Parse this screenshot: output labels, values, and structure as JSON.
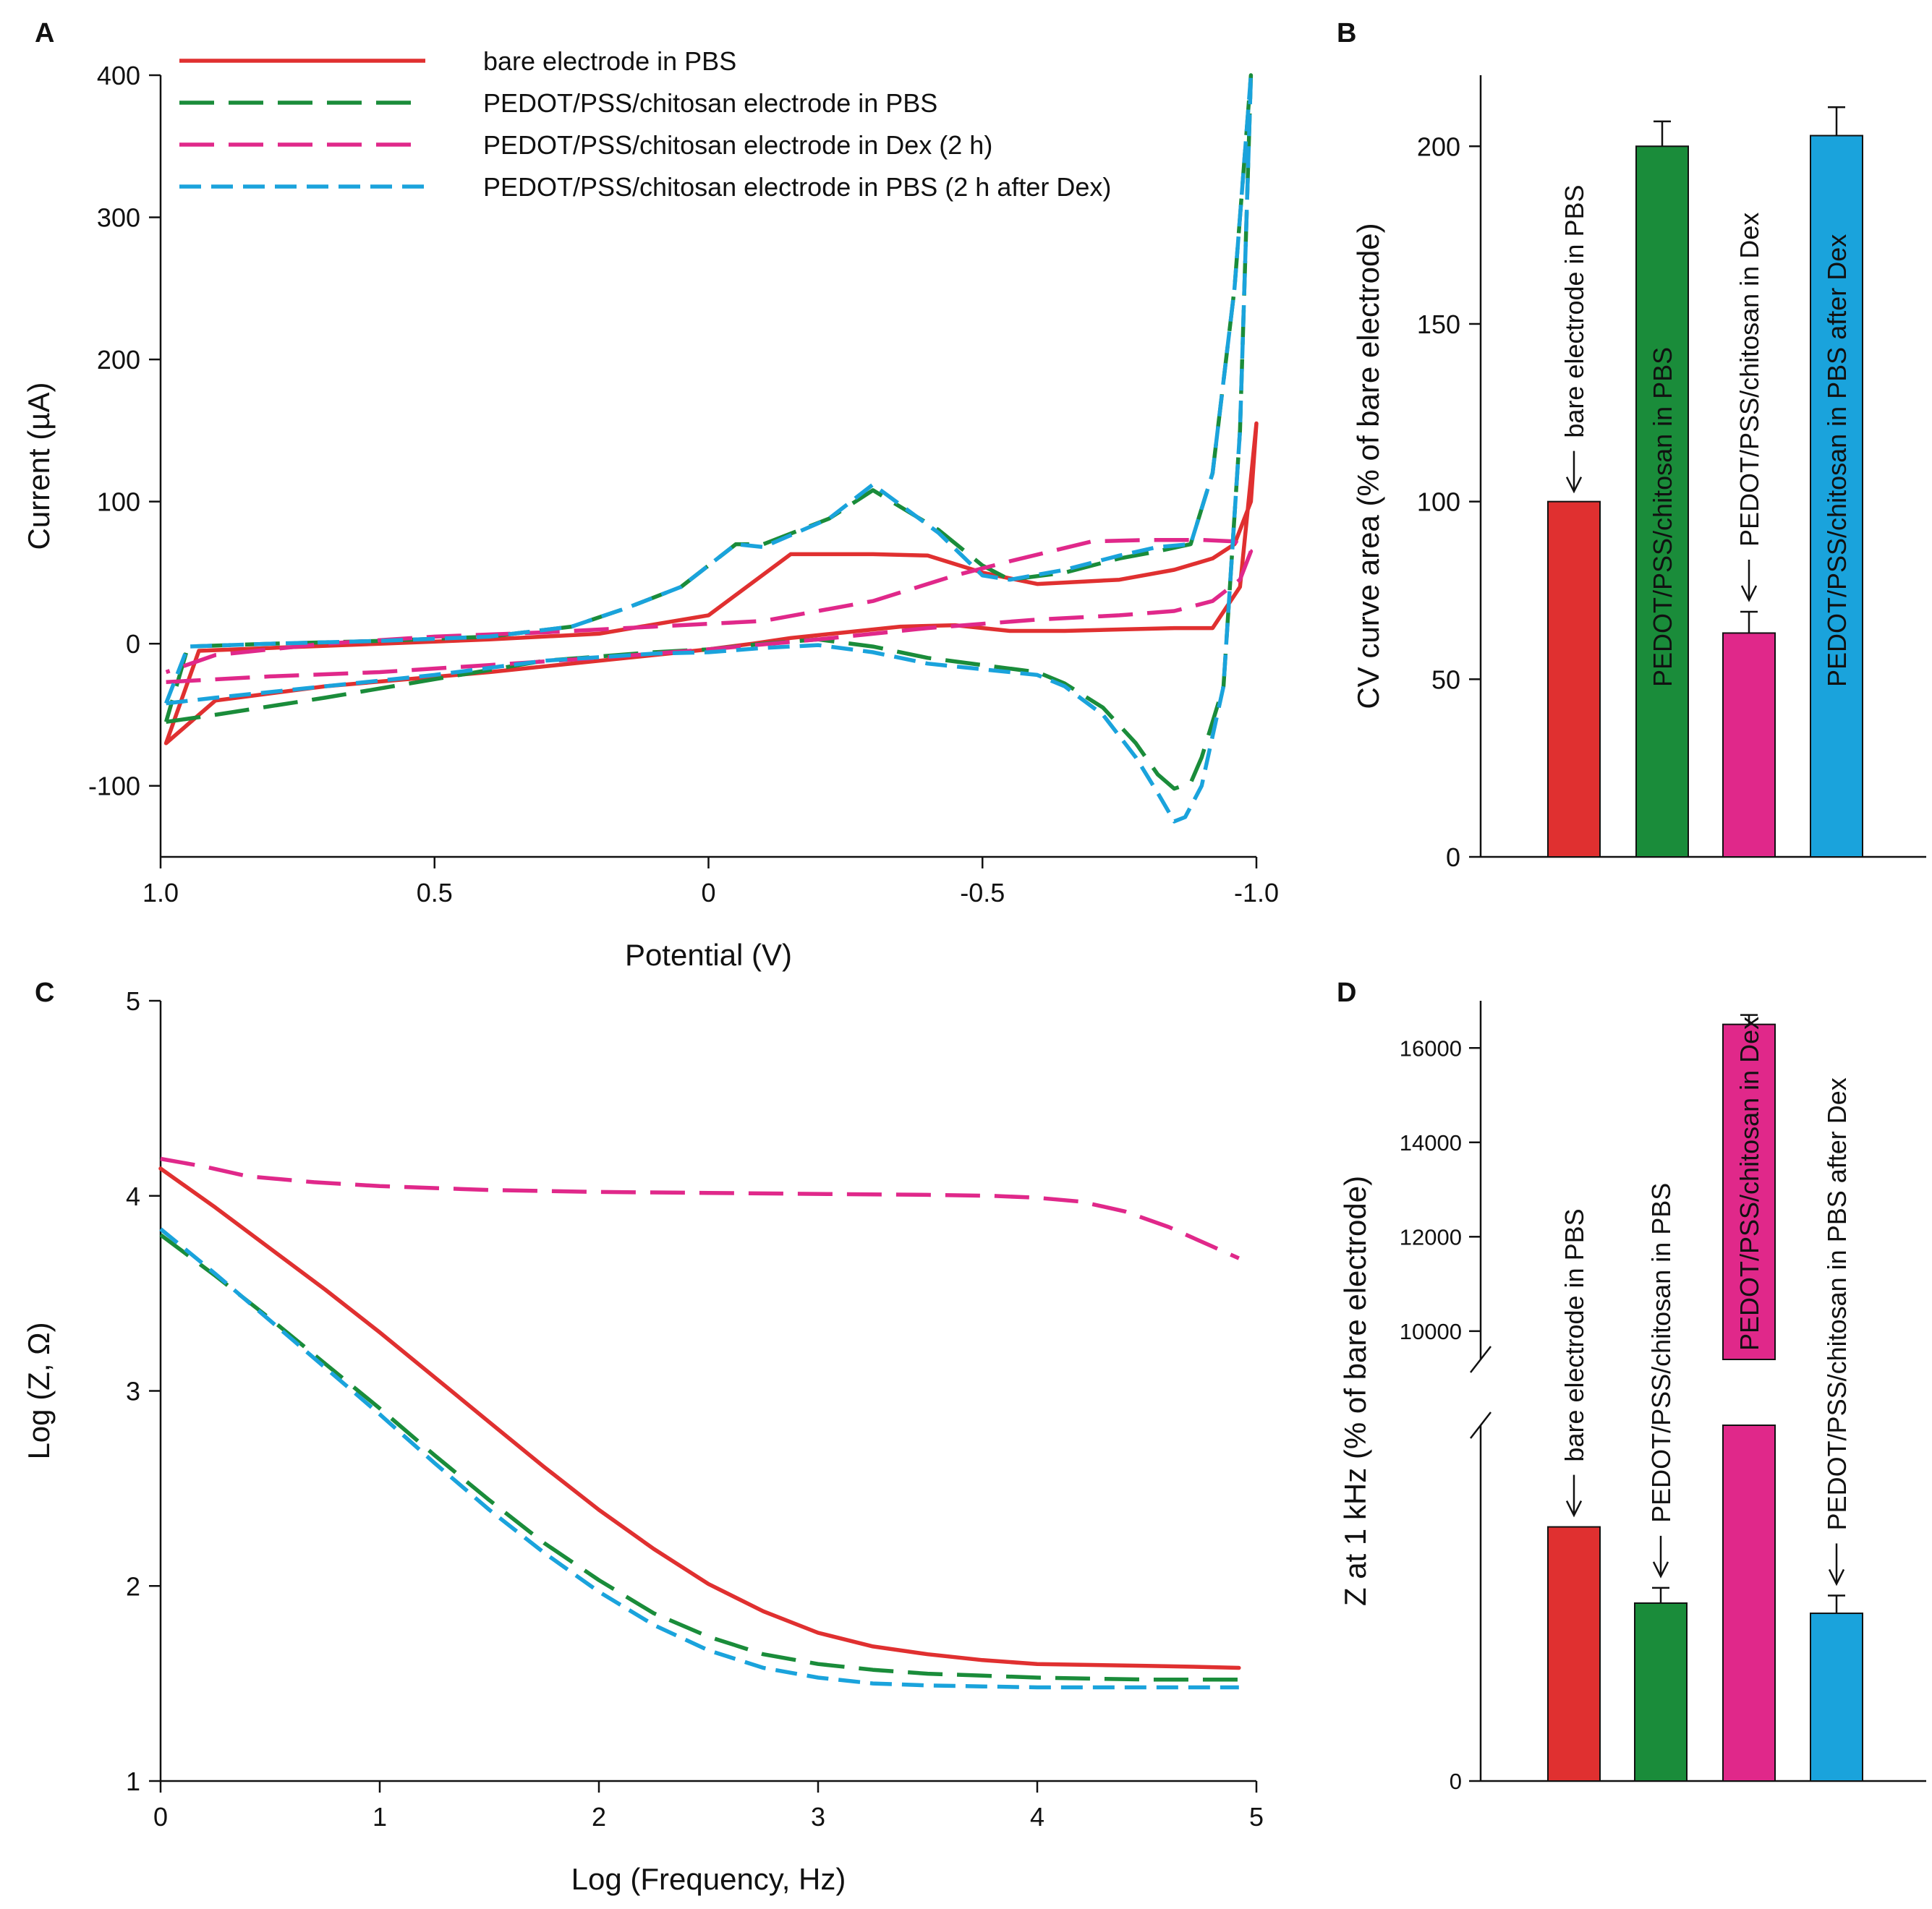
{
  "chart_data": [
    {
      "panel": "A",
      "type": "line",
      "xlabel": "Potential (V)",
      "ylabel": "Current (µA)",
      "xlim": [
        1.0,
        -1.0
      ],
      "ylim": [
        -150,
        400
      ],
      "xticks": [
        1.0,
        0.5,
        0,
        -0.5,
        -1.0
      ],
      "xtick_labels": [
        "1.0",
        "0.5",
        "0",
        "-0.5",
        "-1.0"
      ],
      "yticks": [
        -100,
        0,
        100,
        200,
        300,
        400
      ],
      "ytick_labels": [
        "-100",
        "0",
        "100",
        "200",
        "300",
        "400"
      ],
      "legend": [
        {
          "label": "bare electrode in PBS",
          "color": "#e03030",
          "style": "solid"
        },
        {
          "label": "PEDOT/PSS/chitosan electrode in PBS",
          "color": "#1a8c3a",
          "style": "long-dash"
        },
        {
          "label": "PEDOT/PSS/chitosan electrode in Dex (2 h)",
          "color": "#e0288a",
          "style": "long-dash"
        },
        {
          "label": "PEDOT/PSS/chitosan electrode in PBS (2 h after Dex)",
          "color": "#1aa3dc",
          "style": "dash"
        }
      ],
      "series": [
        {
          "name": "bare electrode in PBS",
          "color": "#e03030",
          "style": "solid",
          "x": [
            0.99,
            0.9,
            0.7,
            0.4,
            0.2,
            0.05,
            0.0,
            -0.08,
            -0.15,
            -0.25,
            -0.35,
            -0.45,
            -0.55,
            -0.65,
            -0.75,
            -0.85,
            -0.92,
            -0.97,
            -1.0,
            -0.99,
            -0.96,
            -0.92,
            -0.85,
            -0.75,
            -0.6,
            -0.5,
            -0.4,
            -0.3,
            -0.15,
            0.0,
            0.2,
            0.4,
            0.6,
            0.8,
            0.93,
            0.99
          ],
          "y": [
            -70,
            -40,
            -30,
            -20,
            -12,
            -6,
            -4,
            0,
            4,
            8,
            12,
            13,
            9,
            9,
            10,
            11,
            11,
            40,
            155,
            100,
            70,
            60,
            52,
            45,
            42,
            50,
            62,
            63,
            63,
            20,
            7,
            3,
            0,
            -3,
            -5,
            -70
          ]
        },
        {
          "name": "PEDOT/PSS/chitosan electrode in PBS",
          "color": "#1a8c3a",
          "style": "long-dash",
          "x": [
            0.99,
            0.9,
            0.7,
            0.5,
            0.3,
            0.1,
            0.0,
            -0.1,
            -0.2,
            -0.3,
            -0.4,
            -0.5,
            -0.6,
            -0.65,
            -0.72,
            -0.78,
            -0.82,
            -0.85,
            -0.88,
            -0.9,
            -0.94,
            -0.97,
            -0.99,
            -0.96,
            -0.92,
            -0.88,
            -0.82,
            -0.75,
            -0.65,
            -0.55,
            -0.5,
            -0.42,
            -0.3,
            -0.22,
            -0.1,
            -0.05,
            0.05,
            0.15,
            0.25,
            0.4,
            0.6,
            0.8,
            0.95,
            0.99
          ],
          "y": [
            -55,
            -50,
            -38,
            -25,
            -12,
            -6,
            -4,
            0,
            3,
            -2,
            -10,
            -15,
            -20,
            -28,
            -45,
            -70,
            -92,
            -102,
            -98,
            -80,
            -30,
            150,
            400,
            250,
            120,
            70,
            65,
            60,
            50,
            45,
            55,
            80,
            108,
            88,
            70,
            70,
            40,
            25,
            12,
            5,
            2,
            0,
            -2,
            -55
          ]
        },
        {
          "name": "PEDOT/PSS/chitosan electrode in Dex (2 h)",
          "color": "#e0288a",
          "style": "long-dash",
          "x": [
            0.99,
            0.8,
            0.6,
            0.4,
            0.2,
            0.0,
            -0.2,
            -0.4,
            -0.6,
            -0.75,
            -0.85,
            -0.92,
            -0.97,
            -0.99,
            -0.96,
            -0.9,
            -0.8,
            -0.7,
            -0.55,
            -0.45,
            -0.3,
            -0.1,
            0.1,
            0.3,
            0.5,
            0.7,
            0.9,
            0.99
          ],
          "y": [
            -27,
            -23,
            -20,
            -15,
            -10,
            -4,
            3,
            11,
            17,
            20,
            23,
            30,
            45,
            65,
            72,
            73,
            73,
            72,
            58,
            48,
            30,
            16,
            12,
            8,
            5,
            0,
            -8,
            -20
          ]
        },
        {
          "name": "PEDOT/PSS/chitosan electrode in PBS (2 h after Dex)",
          "color": "#1aa3dc",
          "style": "dash",
          "x": [
            0.99,
            0.9,
            0.7,
            0.5,
            0.3,
            0.1,
            0.0,
            -0.1,
            -0.2,
            -0.3,
            -0.4,
            -0.5,
            -0.6,
            -0.65,
            -0.72,
            -0.78,
            -0.82,
            -0.85,
            -0.87,
            -0.9,
            -0.94,
            -0.97,
            -0.99,
            -0.96,
            -0.92,
            -0.88,
            -0.82,
            -0.75,
            -0.65,
            -0.55,
            -0.5,
            -0.42,
            -0.3,
            -0.22,
            -0.1,
            -0.05,
            0.05,
            0.15,
            0.25,
            0.4,
            0.6,
            0.8,
            0.95,
            0.99
          ],
          "y": [
            -42,
            -38,
            -30,
            -22,
            -12,
            -7,
            -6,
            -3,
            -1,
            -6,
            -14,
            -18,
            -22,
            -30,
            -50,
            -80,
            -105,
            -125,
            -122,
            -100,
            -30,
            150,
            400,
            250,
            120,
            70,
            68,
            62,
            52,
            45,
            48,
            78,
            112,
            88,
            68,
            70,
            40,
            25,
            12,
            5,
            2,
            0,
            -2,
            -42
          ]
        }
      ]
    },
    {
      "panel": "B",
      "type": "bar",
      "ylabel": "CV curve area (% of bare electrode)",
      "ylim": [
        0,
        220
      ],
      "yticks": [
        0,
        50,
        100,
        150,
        200
      ],
      "ytick_labels": [
        "0",
        "50",
        "100",
        "150",
        "200"
      ],
      "categories": [
        "bare electrode in PBS",
        "PEDOT/PSS/chitosan in PBS",
        "PEDOT/PSS/chitosan in Dex",
        "PEDOT/PSS/chitosan in PBS after Dex"
      ],
      "values": [
        100,
        200,
        63,
        203
      ],
      "errors": [
        0,
        7,
        6,
        8
      ],
      "colors": [
        "#e03030",
        "#1a8c3a",
        "#e0288a",
        "#1aa3dc"
      ]
    },
    {
      "panel": "C",
      "type": "line",
      "xlabel": "Log (Frequency, Hz)",
      "ylabel": "Log (Z, Ω)",
      "xlim": [
        0,
        5
      ],
      "ylim": [
        1,
        5
      ],
      "xticks": [
        0,
        1,
        2,
        3,
        4,
        5
      ],
      "xtick_labels": [
        "0",
        "1",
        "2",
        "3",
        "4",
        "5"
      ],
      "yticks": [
        1,
        2,
        3,
        4,
        5
      ],
      "ytick_labels": [
        "1",
        "2",
        "3",
        "4",
        "5"
      ],
      "series": [
        {
          "name": "bare electrode in PBS",
          "color": "#e03030",
          "style": "solid",
          "x": [
            0,
            0.25,
            0.5,
            0.75,
            1.0,
            1.25,
            1.5,
            1.75,
            2.0,
            2.25,
            2.5,
            2.75,
            3.0,
            3.25,
            3.5,
            3.75,
            4.0,
            4.25,
            4.5,
            4.75,
            4.92
          ],
          "y": [
            4.14,
            3.94,
            3.73,
            3.52,
            3.3,
            3.07,
            2.84,
            2.61,
            2.39,
            2.19,
            2.01,
            1.87,
            1.76,
            1.69,
            1.65,
            1.62,
            1.6,
            1.595,
            1.59,
            1.585,
            1.58
          ]
        },
        {
          "name": "PEDOT/PSS/chitosan electrode in PBS",
          "color": "#1a8c3a",
          "style": "long-dash",
          "x": [
            0,
            0.25,
            0.5,
            0.75,
            1.0,
            1.25,
            1.5,
            1.75,
            2.0,
            2.25,
            2.5,
            2.75,
            3.0,
            3.25,
            3.5,
            3.75,
            4.0,
            4.25,
            4.5,
            4.75,
            4.92
          ],
          "y": [
            3.8,
            3.59,
            3.37,
            3.14,
            2.91,
            2.67,
            2.44,
            2.22,
            2.03,
            1.86,
            1.74,
            1.65,
            1.6,
            1.57,
            1.55,
            1.54,
            1.53,
            1.525,
            1.52,
            1.52,
            1.52
          ]
        },
        {
          "name": "PEDOT/PSS/chitosan electrode in Dex (2 h)",
          "color": "#e0288a",
          "style": "long-dash",
          "x": [
            0,
            0.2,
            0.4,
            0.7,
            1.0,
            1.5,
            2.0,
            2.5,
            3.0,
            3.5,
            3.8,
            4.0,
            4.2,
            4.4,
            4.6,
            4.8,
            4.92
          ],
          "y": [
            4.19,
            4.15,
            4.1,
            4.07,
            4.05,
            4.03,
            4.02,
            4.015,
            4.01,
            4.005,
            4.0,
            3.99,
            3.97,
            3.92,
            3.84,
            3.74,
            3.68
          ]
        },
        {
          "name": "PEDOT/PSS/chitosan electrode in PBS (2 h after Dex)",
          "color": "#1aa3dc",
          "style": "dash",
          "x": [
            0,
            0.25,
            0.5,
            0.75,
            1.0,
            1.25,
            1.5,
            1.75,
            2.0,
            2.25,
            2.5,
            2.75,
            3.0,
            3.25,
            3.5,
            3.75,
            4.0,
            4.25,
            4.5,
            4.75,
            4.92
          ],
          "y": [
            3.83,
            3.6,
            3.36,
            3.12,
            2.88,
            2.63,
            2.39,
            2.17,
            1.97,
            1.8,
            1.67,
            1.58,
            1.53,
            1.5,
            1.49,
            1.485,
            1.48,
            1.48,
            1.48,
            1.48,
            1.48
          ]
        }
      ]
    },
    {
      "panel": "D",
      "type": "bar",
      "ylabel": "Z at 1 kHz (% of bare electrode)",
      "axis_break": true,
      "lower_range": [
        0,
        140
      ],
      "upper_range": [
        9400,
        17000
      ],
      "yticks_lower": [
        0
      ],
      "ytick_labels_lower": [
        "0"
      ],
      "yticks_upper": [
        10000,
        12000,
        14000,
        16000
      ],
      "ytick_labels_upper": [
        "10000",
        "12000",
        "14000",
        "16000"
      ],
      "categories": [
        "bare electrode in PBS",
        "PEDOT/PSS/chitosan in PBS",
        "PEDOT/PSS/chitosan in Dex",
        "PEDOT/PSS/chitosan in PBS after Dex"
      ],
      "values": [
        100,
        70,
        16500,
        66
      ],
      "errors": [
        0,
        6,
        200,
        7
      ],
      "colors": [
        "#e03030",
        "#1a8c3a",
        "#e0288a",
        "#1aa3dc"
      ]
    }
  ],
  "panel_letters": {
    "a": "A",
    "b": "B",
    "c": "C",
    "d": "D"
  }
}
